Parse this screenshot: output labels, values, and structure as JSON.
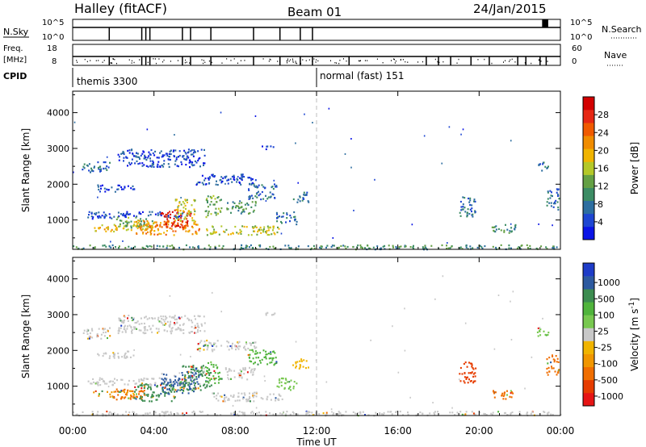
{
  "header": {
    "radar": "Halley (fitACF)",
    "beam": "Beam 01",
    "date": "24/Jan/2015"
  },
  "strips": {
    "nsky_label": "N.Sky",
    "nsky_ticks": [
      "10^5",
      "10^0"
    ],
    "nsearch_label": "N.Search",
    "nsearch_ticks": [
      "10^5",
      "10^0"
    ],
    "freq_label_top": "Freq.",
    "freq_label_bottom": "[MHz]",
    "freq_ticks": [
      "18",
      "8"
    ],
    "nave_label": "Nave",
    "nave_ticks": [
      "60",
      "0"
    ],
    "cpid_label": "CPID",
    "cpid_segments": [
      {
        "text": "themis 3300",
        "start_hour": 0
      },
      {
        "text": "normal (fast) 151",
        "start_hour": 12
      }
    ]
  },
  "chart_data": [
    {
      "type": "heatmap",
      "name": "power-panel",
      "ylabel": "Slant Range [km]",
      "xlabel": "Time UT",
      "xlim": [
        0,
        24
      ],
      "ylim": [
        180,
        4600
      ],
      "x_ticks": [
        "00:00",
        "04:00",
        "08:00",
        "12:00",
        "16:00",
        "20:00",
        "00:00"
      ],
      "y_ticks": [
        1000,
        2000,
        3000,
        4000
      ],
      "colorbar": {
        "label": "Power [dB]",
        "ticks": [
          "4",
          "8",
          "12",
          "16",
          "20",
          "24",
          "28"
        ],
        "colors": [
          "#0a14e6",
          "#1e46d2",
          "#2d6ea0",
          "#3c8c64",
          "#64a044",
          "#b4c828",
          "#f0b400",
          "#f08c00",
          "#f05a00",
          "#e62814",
          "#d20000"
        ]
      },
      "regions": [
        {
          "t0": 0.4,
          "t1": 1.8,
          "r0": 2350,
          "r1": 2650,
          "level": 2
        },
        {
          "t0": 0.7,
          "t1": 5.5,
          "r0": 1050,
          "r1": 1250,
          "level": 1
        },
        {
          "t0": 1.0,
          "t1": 4.2,
          "r0": 700,
          "r1": 900,
          "level": 6
        },
        {
          "t0": 2.0,
          "t1": 4.0,
          "r0": 800,
          "r1": 1100,
          "level": 4
        },
        {
          "t0": 3.0,
          "t1": 6.2,
          "r0": 600,
          "r1": 1000,
          "level": 7
        },
        {
          "t0": 4.3,
          "t1": 5.8,
          "r0": 800,
          "r1": 1300,
          "level": 9
        },
        {
          "t0": 5.0,
          "t1": 6.0,
          "r0": 1000,
          "r1": 1600,
          "level": 5
        },
        {
          "t0": 6.5,
          "t1": 7.3,
          "r0": 1100,
          "r1": 1700,
          "level": 4
        },
        {
          "t0": 6.5,
          "t1": 10.3,
          "r0": 600,
          "r1": 850,
          "level": 5
        },
        {
          "t0": 7.5,
          "t1": 9.0,
          "r0": 1200,
          "r1": 1550,
          "level": 3
        },
        {
          "t0": 8.6,
          "t1": 10.0,
          "r0": 1600,
          "r1": 2050,
          "level": 2
        },
        {
          "t0": 9.2,
          "t1": 10.0,
          "r0": 3000,
          "r1": 3100,
          "level": 1
        },
        {
          "t0": 10.0,
          "t1": 11.0,
          "r0": 900,
          "r1": 1250,
          "level": 2
        },
        {
          "t0": 10.8,
          "t1": 11.6,
          "r0": 1500,
          "r1": 1800,
          "level": 2
        },
        {
          "t0": 19.0,
          "t1": 19.8,
          "r0": 1100,
          "r1": 1700,
          "level": 2
        },
        {
          "t0": 20.6,
          "t1": 21.8,
          "r0": 650,
          "r1": 900,
          "level": 3
        },
        {
          "t0": 22.8,
          "t1": 23.4,
          "r0": 2400,
          "r1": 2650,
          "level": 2
        },
        {
          "t0": 23.3,
          "t1": 23.9,
          "r0": 1300,
          "r1": 1900,
          "level": 2
        },
        {
          "t0": 2.2,
          "t1": 6.5,
          "r0": 2500,
          "r1": 3000,
          "level": 1
        },
        {
          "t0": 6.0,
          "t1": 9.0,
          "r0": 2000,
          "r1": 2300,
          "level": 1
        },
        {
          "t0": 1.2,
          "t1": 3.0,
          "r0": 1800,
          "r1": 2000,
          "level": 1
        },
        {
          "t0": 0.0,
          "t1": 24.0,
          "r0": 200,
          "r1": 320,
          "level": 3
        }
      ]
    },
    {
      "type": "heatmap",
      "name": "velocity-panel",
      "ylabel": "Slant Range [km]",
      "xlabel": "Time UT",
      "xlim": [
        0,
        24
      ],
      "ylim": [
        180,
        4600
      ],
      "x_ticks": [
        "00:00",
        "04:00",
        "08:00",
        "12:00",
        "16:00",
        "20:00",
        "00:00"
      ],
      "y_ticks": [
        1000,
        2000,
        3000,
        4000
      ],
      "colorbar": {
        "label": "Velocity [m s",
        "label_sup": "-1",
        "label_end": "]",
        "ticks": [
          "1000",
          "500",
          "100",
          "25",
          "-25",
          "-100",
          "-500",
          "-1000"
        ],
        "colors": [
          "#1e3cc8",
          "#2d5aa0",
          "#3c8c50",
          "#50b43c",
          "#78c850",
          "#c8c8c8",
          "#f0b400",
          "#f09600",
          "#f06e00",
          "#e63c00",
          "#e61414"
        ]
      },
      "regions": [
        {
          "t0": 0.4,
          "t1": 1.8,
          "r0": 2350,
          "r1": 2650,
          "color": "#c8c8c8"
        },
        {
          "t0": 0.7,
          "t1": 5.5,
          "r0": 1050,
          "r1": 1250,
          "color": "#c8c8c8"
        },
        {
          "t0": 1.0,
          "t1": 3.0,
          "r0": 700,
          "r1": 900,
          "color": "#f09600"
        },
        {
          "t0": 2.0,
          "t1": 3.5,
          "r0": 650,
          "r1": 950,
          "color": "#f06e00"
        },
        {
          "t0": 3.0,
          "t1": 5.0,
          "r0": 600,
          "r1": 1100,
          "color": "#3c8c50"
        },
        {
          "t0": 4.3,
          "t1": 6.2,
          "r0": 800,
          "r1": 1400,
          "color": "#2d5aa0"
        },
        {
          "t0": 5.2,
          "t1": 6.8,
          "r0": 900,
          "r1": 1600,
          "color": "#3c8c50"
        },
        {
          "t0": 6.5,
          "t1": 7.3,
          "r0": 1100,
          "r1": 1700,
          "color": "#50b43c"
        },
        {
          "t0": 6.8,
          "t1": 10.3,
          "r0": 600,
          "r1": 850,
          "color": "#c8c8c8"
        },
        {
          "t0": 7.5,
          "t1": 9.0,
          "r0": 1200,
          "r1": 1550,
          "color": "#c8c8c8"
        },
        {
          "t0": 8.6,
          "t1": 10.0,
          "r0": 1600,
          "r1": 2050,
          "color": "#50b43c"
        },
        {
          "t0": 9.2,
          "t1": 10.0,
          "r0": 3000,
          "r1": 3100,
          "color": "#c8c8c8"
        },
        {
          "t0": 10.0,
          "t1": 11.0,
          "r0": 900,
          "r1": 1250,
          "color": "#78c850"
        },
        {
          "t0": 10.8,
          "t1": 11.6,
          "r0": 1500,
          "r1": 1800,
          "color": "#f0b400"
        },
        {
          "t0": 19.0,
          "t1": 19.8,
          "r0": 1100,
          "r1": 1700,
          "color": "#e63c00"
        },
        {
          "t0": 20.6,
          "t1": 21.8,
          "r0": 650,
          "r1": 900,
          "color": "#f06e00"
        },
        {
          "t0": 22.8,
          "t1": 23.4,
          "r0": 2400,
          "r1": 2650,
          "color": "#78c850"
        },
        {
          "t0": 23.3,
          "t1": 23.9,
          "r0": 1300,
          "r1": 1900,
          "color": "#f06e00"
        },
        {
          "t0": 2.2,
          "t1": 6.5,
          "r0": 2500,
          "r1": 3000,
          "color": "#c8c8c8"
        },
        {
          "t0": 6.0,
          "t1": 9.0,
          "r0": 2000,
          "r1": 2300,
          "color": "#c8c8c8"
        },
        {
          "t0": 1.2,
          "t1": 3.0,
          "r0": 1800,
          "r1": 2000,
          "color": "#c8c8c8"
        },
        {
          "t0": 0.0,
          "t1": 24.0,
          "r0": 200,
          "r1": 320,
          "color": "#c8c8c8"
        }
      ]
    }
  ]
}
